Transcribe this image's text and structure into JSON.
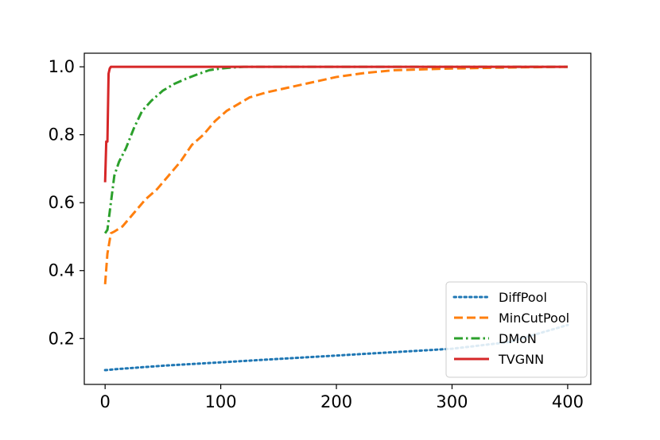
{
  "chart_data": {
    "type": "line",
    "title": "",
    "xlabel": "",
    "ylabel": "",
    "xlim": [
      -18,
      420
    ],
    "ylim": [
      0.065,
      1.04
    ],
    "xticks": [
      0,
      100,
      200,
      300,
      400
    ],
    "yticks": [
      0.2,
      0.4,
      0.6,
      0.8,
      1.0
    ],
    "xtick_labels": [
      "0",
      "100",
      "200",
      "300",
      "400"
    ],
    "ytick_labels": [
      "0.2",
      "0.4",
      "0.6",
      "0.8",
      "1.0"
    ],
    "grid": false,
    "legend_position": "lower right",
    "series": [
      {
        "name": "DiffPool",
        "color": "#1f77b4",
        "style": "dotted",
        "x": [
          0,
          10,
          50,
          100,
          150,
          200,
          250,
          300,
          350,
          400
        ],
        "y": [
          0.107,
          0.11,
          0.12,
          0.13,
          0.14,
          0.15,
          0.16,
          0.17,
          0.19,
          0.24
        ]
      },
      {
        "name": "MinCutPool",
        "color": "#ff7f0e",
        "style": "dashed",
        "x": [
          0,
          2,
          5,
          8,
          15,
          25,
          35,
          45,
          55,
          65,
          75,
          85,
          95,
          105,
          115,
          125,
          140,
          160,
          180,
          200,
          225,
          250,
          300,
          350,
          400
        ],
        "y": [
          0.36,
          0.45,
          0.51,
          0.515,
          0.53,
          0.57,
          0.61,
          0.64,
          0.68,
          0.72,
          0.77,
          0.8,
          0.84,
          0.87,
          0.89,
          0.91,
          0.925,
          0.94,
          0.955,
          0.97,
          0.982,
          0.99,
          0.995,
          0.998,
          1.0
        ]
      },
      {
        "name": "DMoN",
        "color": "#2ca02c",
        "style": "dashdot",
        "x": [
          0,
          2,
          5,
          8,
          12,
          18,
          25,
          32,
          40,
          50,
          60,
          70,
          80,
          90,
          100,
          110,
          120,
          150,
          200,
          300,
          400
        ],
        "y": [
          0.51,
          0.52,
          0.6,
          0.68,
          0.72,
          0.76,
          0.82,
          0.87,
          0.9,
          0.93,
          0.95,
          0.965,
          0.978,
          0.99,
          0.995,
          0.998,
          1.0,
          1.0,
          1.0,
          1.0,
          1.0
        ]
      },
      {
        "name": "TVGNN",
        "color": "#d62728",
        "style": "solid",
        "x": [
          0,
          1,
          2,
          3,
          4,
          5,
          400
        ],
        "y": [
          0.66,
          0.78,
          0.78,
          0.98,
          0.995,
          1.0,
          1.0
        ]
      }
    ]
  }
}
